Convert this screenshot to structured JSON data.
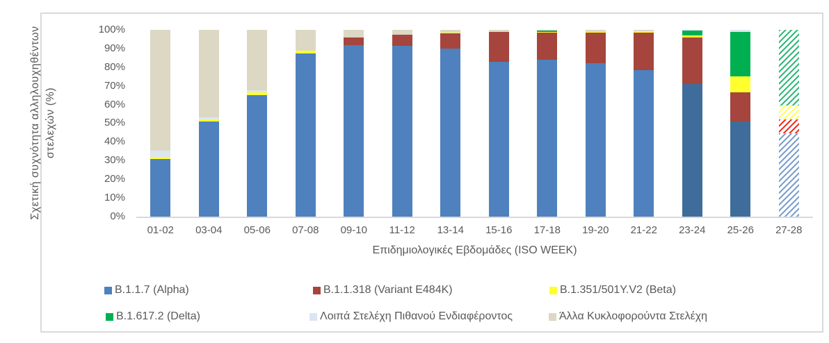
{
  "chart_data": {
    "type": "bar",
    "stacking": "percent",
    "title": "",
    "xlabel": "Επιδημιολογικές Εβδομάδες (ISO WEEK)",
    "ylabel_line1": "Σχετική συχνότητα αλληλουχηθέντων",
    "ylabel_line2": "στελεχών (%)",
    "ylim": [
      0,
      100
    ],
    "grid": false,
    "y_ticks": [
      "100%",
      "90%",
      "80%",
      "70%",
      "60%",
      "50%",
      "40%",
      "30%",
      "20%",
      "10%",
      "0%"
    ],
    "categories": [
      "01-02",
      "03-04",
      "05-06",
      "07-08",
      "09-10",
      "11-12",
      "13-14",
      "15-16",
      "17-18",
      "19-20",
      "21-22",
      "23-24",
      "25-26",
      "27-28"
    ],
    "series_order": [
      "alpha",
      "e484k",
      "beta",
      "delta",
      "loipa",
      "alla"
    ],
    "colors": {
      "alpha": "#4e81bd",
      "alpha_dark": "#3f6d9b",
      "e484k": "#a5453d",
      "beta": "#ffff2e",
      "delta": "#00b050",
      "loipa": "#dce6f2",
      "alla": "#dcd8c4"
    },
    "hatch_colors": {
      "alpha": "#7d9fcc",
      "e484k": "#ee3124",
      "beta": "#ffff66",
      "delta": "#35b87a",
      "loipa": "#dce6f2",
      "alla": "#dcd8c4"
    },
    "bars": [
      {
        "category": "01-02",
        "segments": [
          [
            "alpha",
            31
          ],
          [
            "beta",
            1
          ],
          [
            "loipa",
            3.5
          ],
          [
            "alla",
            64.5
          ]
        ]
      },
      {
        "category": "03-04",
        "segments": [
          [
            "alpha",
            51
          ],
          [
            "beta",
            1
          ],
          [
            "loipa",
            1
          ],
          [
            "alla",
            47
          ]
        ]
      },
      {
        "category": "05-06",
        "segments": [
          [
            "alpha",
            65
          ],
          [
            "beta",
            1.5
          ],
          [
            "loipa",
            1
          ],
          [
            "alla",
            32.5
          ]
        ]
      },
      {
        "category": "07-08",
        "segments": [
          [
            "alpha",
            87.5
          ],
          [
            "beta",
            1.5
          ],
          [
            "alla",
            11
          ]
        ]
      },
      {
        "category": "09-10",
        "segments": [
          [
            "alpha",
            92
          ],
          [
            "e484k",
            4
          ],
          [
            "alla",
            4
          ]
        ]
      },
      {
        "category": "11-12",
        "segments": [
          [
            "alpha",
            91.5
          ],
          [
            "e484k",
            6
          ],
          [
            "alla",
            2.5
          ]
        ]
      },
      {
        "category": "13-14",
        "segments": [
          [
            "alpha",
            90
          ],
          [
            "e484k",
            8
          ],
          [
            "beta",
            0.7
          ],
          [
            "alla",
            1.3
          ]
        ]
      },
      {
        "category": "15-16",
        "segments": [
          [
            "alpha",
            83
          ],
          [
            "e484k",
            16
          ],
          [
            "alla",
            1
          ]
        ]
      },
      {
        "category": "17-18",
        "segments": [
          [
            "alpha",
            84
          ],
          [
            "e484k",
            14.5
          ],
          [
            "beta",
            0.5
          ],
          [
            "delta",
            0.5
          ],
          [
            "alla",
            0.5
          ]
        ]
      },
      {
        "category": "19-20",
        "segments": [
          [
            "alpha",
            82
          ],
          [
            "e484k",
            16.5
          ],
          [
            "beta",
            0.5
          ],
          [
            "alla",
            1
          ]
        ]
      },
      {
        "category": "21-22",
        "segments": [
          [
            "alpha",
            78.5
          ],
          [
            "e484k",
            20
          ],
          [
            "beta",
            0.7
          ],
          [
            "alla",
            0.8
          ]
        ]
      },
      {
        "category": "23-24",
        "dark_alpha": true,
        "segments": [
          [
            "alpha",
            71
          ],
          [
            "e484k",
            25
          ],
          [
            "beta",
            1
          ],
          [
            "delta",
            2.5
          ],
          [
            "loipa",
            0.5
          ]
        ]
      },
      {
        "category": "25-26",
        "dark_alpha": true,
        "segments": [
          [
            "alpha",
            51
          ],
          [
            "e484k",
            15.5
          ],
          [
            "beta",
            8.5
          ],
          [
            "delta",
            24
          ],
          [
            "loipa",
            1
          ]
        ]
      },
      {
        "category": "27-28",
        "hatched": true,
        "segments": [
          [
            "alpha",
            44.5
          ],
          [
            "e484k",
            7.5
          ],
          [
            "beta",
            7.5
          ],
          [
            "delta",
            40.5
          ]
        ]
      }
    ],
    "legend": {
      "position": "bottom",
      "items": [
        {
          "key": "alpha",
          "label": "B.1.1.7 (Alpha)",
          "pos": "r1c1"
        },
        {
          "key": "e484k",
          "label": "B.1.1.318 (Variant E484K)",
          "pos": "r1c2"
        },
        {
          "key": "beta",
          "label": "B.1.351/501Y.V2 (Beta)",
          "pos": "r1c3"
        },
        {
          "key": "delta",
          "label": "B.1.617.2 (Delta)",
          "pos": "r2c1"
        },
        {
          "key": "loipa",
          "label": "Λοιπά Στελέχη Πιθανού Ενδιαφέροντος",
          "pos": "r2c2"
        },
        {
          "key": "alla",
          "label": "Άλλα Κυκλοφορούντα Στελέχη",
          "pos": "r2c3"
        }
      ]
    }
  }
}
